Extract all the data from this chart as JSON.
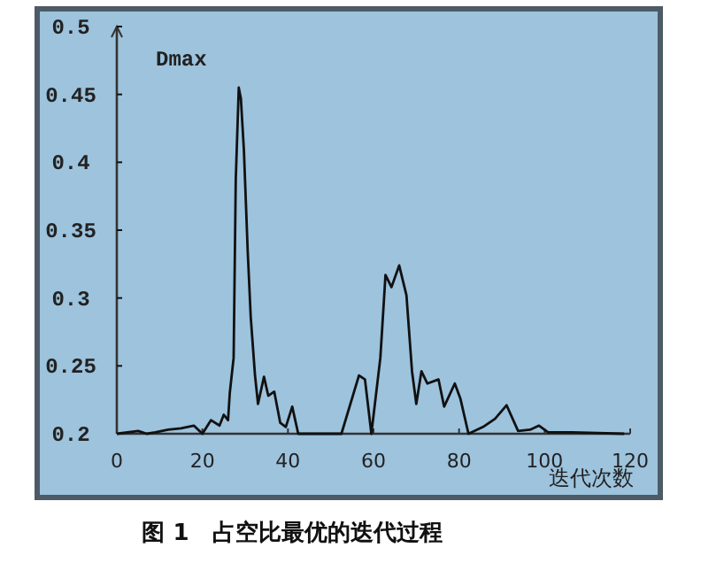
{
  "chart_data": {
    "type": "line",
    "title": "图 1　占空比最优的迭代过程",
    "ylabel": "Dmax",
    "xlabel": "迭代次数",
    "xlim": [
      0,
      120
    ],
    "ylim": [
      0.2,
      0.5
    ],
    "xticks": [
      0,
      20,
      40,
      60,
      80,
      100,
      120
    ],
    "yticks": [
      0.2,
      0.25,
      0.3,
      0.35,
      0.4,
      0.45,
      0.5
    ],
    "grid": false,
    "series": [
      {
        "color": "#111111",
        "x": [
          0,
          5,
          7,
          9,
          12,
          15,
          18,
          20,
          22,
          24,
          25,
          26,
          26.4,
          27.3,
          27.8,
          28.5,
          29,
          29.7,
          30.6,
          31.3,
          32.3,
          33,
          34.4,
          35.4,
          36.8,
          38.2,
          39.5,
          41,
          42.4,
          52.5,
          56.6,
          58,
          59.5,
          61.6,
          62.8,
          64.2,
          66,
          67.7,
          69,
          70,
          71.2,
          72.6,
          75.2,
          76.5,
          79,
          80.3,
          82.2,
          85.6,
          88.4,
          91.1,
          93.8,
          96.6,
          98.7,
          100.8,
          106.3,
          118.6
        ],
        "values": [
          0.2,
          0.202,
          0.2,
          0.201,
          0.203,
          0.204,
          0.206,
          0.2,
          0.21,
          0.206,
          0.214,
          0.21,
          0.23,
          0.256,
          0.387,
          0.455,
          0.447,
          0.409,
          0.334,
          0.286,
          0.243,
          0.222,
          0.242,
          0.228,
          0.231,
          0.208,
          0.205,
          0.22,
          0.2,
          0.2,
          0.243,
          0.24,
          0.2,
          0.256,
          0.317,
          0.308,
          0.324,
          0.302,
          0.246,
          0.222,
          0.246,
          0.237,
          0.24,
          0.22,
          0.237,
          0.226,
          0.2,
          0.205,
          0.211,
          0.221,
          0.202,
          0.203,
          0.206,
          0.201,
          0.201,
          0.2
        ]
      }
    ]
  }
}
